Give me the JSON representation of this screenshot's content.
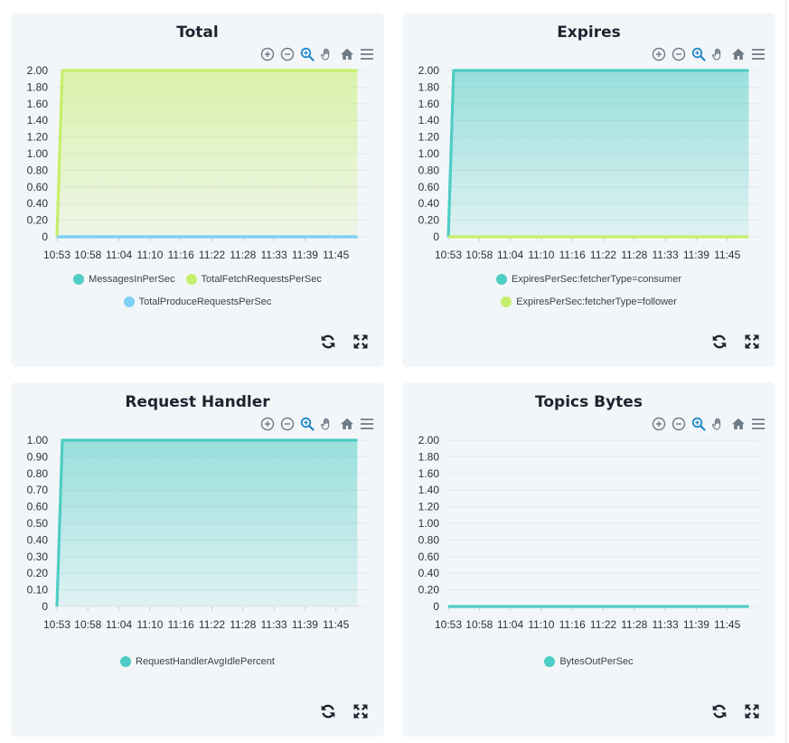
{
  "charts": [
    {
      "title": "Total",
      "chart_data": {
        "type": "area",
        "title": "Total",
        "x_ticks": [
          "10:53",
          "10:58",
          "11:04",
          "11:10",
          "11:16",
          "11:22",
          "11:28",
          "11:33",
          "11:39",
          "11:45"
        ],
        "y_ticks": [
          "0",
          "0.20",
          "0.40",
          "0.60",
          "0.80",
          "1.00",
          "1.20",
          "1.40",
          "1.60",
          "1.80",
          "2.00"
        ],
        "ylim": [
          0,
          2
        ],
        "legend_position": "bottom",
        "grid": true,
        "series": [
          {
            "name": "MessagesInPerSec",
            "color": "#4ecdc4",
            "x": [
              "10:53",
              "10:54",
              "11:49"
            ],
            "values": [
              0,
              0,
              0
            ]
          },
          {
            "name": "TotalFetchRequestsPerSec",
            "color": "#c5ef6a",
            "x": [
              "10:53",
              "10:54",
              "11:49"
            ],
            "values": [
              0,
              2,
              2
            ]
          },
          {
            "name": "TotalProduceRequestsPerSec",
            "color": "#7fd1f5",
            "x": [
              "10:53",
              "10:54",
              "11:49"
            ],
            "values": [
              0,
              0,
              0
            ]
          }
        ]
      }
    },
    {
      "title": "Expires",
      "chart_data": {
        "type": "area",
        "title": "Expires",
        "x_ticks": [
          "10:53",
          "10:58",
          "11:04",
          "11:10",
          "11:16",
          "11:22",
          "11:28",
          "11:33",
          "11:39",
          "11:45"
        ],
        "y_ticks": [
          "0",
          "0.20",
          "0.40",
          "0.60",
          "0.80",
          "1.00",
          "1.20",
          "1.40",
          "1.60",
          "1.80",
          "2.00"
        ],
        "ylim": [
          0,
          2
        ],
        "legend_position": "bottom",
        "grid": true,
        "series": [
          {
            "name": "ExpiresPerSec:fetcherType=consumer",
            "color": "#4ecdc4",
            "x": [
              "10:53",
              "10:54",
              "11:49"
            ],
            "values": [
              0,
              2,
              2
            ]
          },
          {
            "name": "ExpiresPerSec:fetcherType=follower",
            "color": "#c5ef6a",
            "x": [
              "10:53",
              "10:54",
              "11:49"
            ],
            "values": [
              0,
              0,
              0
            ]
          }
        ]
      }
    },
    {
      "title": "Request Handler",
      "chart_data": {
        "type": "area",
        "title": "Request Handler",
        "x_ticks": [
          "10:53",
          "10:58",
          "11:04",
          "11:10",
          "11:16",
          "11:22",
          "11:28",
          "11:33",
          "11:39",
          "11:45"
        ],
        "y_ticks": [
          "0",
          "0.10",
          "0.20",
          "0.30",
          "0.40",
          "0.50",
          "0.60",
          "0.70",
          "0.80",
          "0.90",
          "1.00"
        ],
        "ylim": [
          0,
          1
        ],
        "legend_position": "bottom",
        "grid": true,
        "series": [
          {
            "name": "RequestHandlerAvgIdlePercent",
            "color": "#4ecdc4",
            "x": [
              "10:53",
              "10:54",
              "11:49"
            ],
            "values": [
              0,
              1,
              1
            ]
          }
        ]
      }
    },
    {
      "title": "Topics Bytes",
      "chart_data": {
        "type": "area",
        "title": "Topics Bytes",
        "x_ticks": [
          "10:53",
          "10:58",
          "11:04",
          "11:10",
          "11:16",
          "11:22",
          "11:28",
          "11:33",
          "11:39",
          "11:45"
        ],
        "y_ticks": [
          "0",
          "0.20",
          "0.40",
          "0.60",
          "0.80",
          "1.00",
          "1.20",
          "1.40",
          "1.60",
          "1.80",
          "2.00"
        ],
        "ylim": [
          0,
          2
        ],
        "legend_position": "bottom",
        "grid": true,
        "series": [
          {
            "name": "BytesOutPerSec",
            "color": "#4ecdc4",
            "x": [
              "10:53",
              "11:49"
            ],
            "values": [
              0,
              0
            ]
          }
        ]
      }
    }
  ],
  "toolbar_icons": [
    "zoom-in-icon",
    "zoom-out-icon",
    "selection-zoom-icon",
    "pan-hand-icon",
    "reset-home-icon",
    "menu-icon"
  ],
  "card_action_icons": [
    "refresh-icon",
    "fullscreen-icon"
  ],
  "colors": {
    "card_bg": "#f3f6f9",
    "grid": "#e1e6ea",
    "icon": "#6e7a86",
    "icon_active": "#1e88c8",
    "action_icon": "#1f2330"
  }
}
